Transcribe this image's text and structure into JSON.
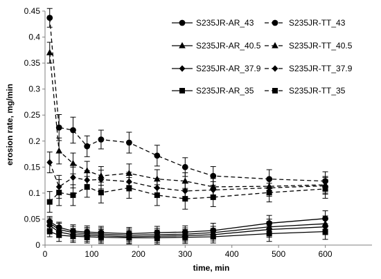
{
  "chart_data": {
    "type": "line",
    "title": "",
    "xlabel": "time, min",
    "ylabel": "erosion rate, mg/min",
    "xlim": [
      0,
      700
    ],
    "ylim": [
      0,
      0.45
    ],
    "xticks": [
      0,
      100,
      200,
      300,
      400,
      500,
      600
    ],
    "yticks": [
      0,
      0.05,
      0.1,
      0.15,
      0.2,
      0.25,
      0.3,
      0.35,
      0.4,
      0.45
    ],
    "grid": false,
    "legend_position": "top-right",
    "x": [
      10,
      30,
      60,
      90,
      120,
      180,
      240,
      300,
      360,
      480,
      600
    ],
    "series": [
      {
        "name": "S235JR-AR_43",
        "marker": "circle",
        "line": "solid",
        "values": [
          0.045,
          0.034,
          0.027,
          0.025,
          0.024,
          0.022,
          0.024,
          0.025,
          0.028,
          0.042,
          0.051
        ],
        "errors": [
          0.01,
          0.01,
          0.012,
          0.012,
          0.012,
          0.012,
          0.012,
          0.012,
          0.014,
          0.015,
          0.015
        ]
      },
      {
        "name": "S235JR-TT_43",
        "marker": "circle",
        "line": "dashed",
        "values": [
          0.437,
          0.226,
          0.221,
          0.19,
          0.203,
          0.197,
          0.172,
          0.15,
          0.133,
          0.127,
          0.123
        ],
        "errors": [
          0.018,
          0.025,
          0.025,
          0.02,
          0.018,
          0.02,
          0.02,
          0.018,
          0.018,
          0.018,
          0.018
        ]
      },
      {
        "name": "S235JR-AR_40.5",
        "marker": "triangle",
        "line": "solid",
        "values": [
          0.042,
          0.03,
          0.024,
          0.022,
          0.021,
          0.019,
          0.02,
          0.021,
          0.024,
          0.035,
          0.041
        ],
        "errors": [
          0.01,
          0.012,
          0.012,
          0.012,
          0.012,
          0.012,
          0.012,
          0.012,
          0.012,
          0.015,
          0.015
        ]
      },
      {
        "name": "S235JR-TT_40.5",
        "marker": "triangle",
        "line": "dashed",
        "values": [
          0.37,
          0.181,
          0.157,
          0.143,
          0.133,
          0.138,
          0.127,
          0.123,
          0.112,
          0.113,
          0.116
        ],
        "errors": [
          0.02,
          0.025,
          0.02,
          0.018,
          0.018,
          0.018,
          0.018,
          0.016,
          0.016,
          0.016,
          0.016
        ]
      },
      {
        "name": "S235JR-AR_37.9",
        "marker": "diamond",
        "line": "solid",
        "values": [
          0.038,
          0.025,
          0.02,
          0.019,
          0.018,
          0.016,
          0.017,
          0.018,
          0.02,
          0.03,
          0.035
        ],
        "errors": [
          0.01,
          0.01,
          0.012,
          0.012,
          0.012,
          0.012,
          0.012,
          0.012,
          0.012,
          0.015,
          0.015
        ]
      },
      {
        "name": "S235JR-TT_37.9",
        "marker": "diamond",
        "line": "dashed",
        "values": [
          0.159,
          0.112,
          0.13,
          0.125,
          0.126,
          0.122,
          0.11,
          0.104,
          0.106,
          0.11,
          0.114
        ],
        "errors": [
          0.02,
          0.022,
          0.02,
          0.018,
          0.018,
          0.018,
          0.018,
          0.016,
          0.016,
          0.016,
          0.016
        ]
      },
      {
        "name": "S235JR-AR_35",
        "marker": "square",
        "line": "solid",
        "values": [
          0.026,
          0.019,
          0.017,
          0.016,
          0.015,
          0.014,
          0.014,
          0.015,
          0.016,
          0.022,
          0.026
        ],
        "errors": [
          0.01,
          0.012,
          0.012,
          0.012,
          0.012,
          0.012,
          0.012,
          0.012,
          0.012,
          0.015,
          0.015
        ]
      },
      {
        "name": "S235JR-TT_35",
        "marker": "square",
        "line": "dashed",
        "values": [
          0.083,
          0.101,
          0.096,
          0.112,
          0.101,
          0.11,
          0.096,
          0.089,
          0.092,
          0.101,
          0.108
        ],
        "errors": [
          0.02,
          0.025,
          0.02,
          0.02,
          0.02,
          0.02,
          0.02,
          0.02,
          0.018,
          0.018,
          0.018
        ]
      }
    ]
  }
}
